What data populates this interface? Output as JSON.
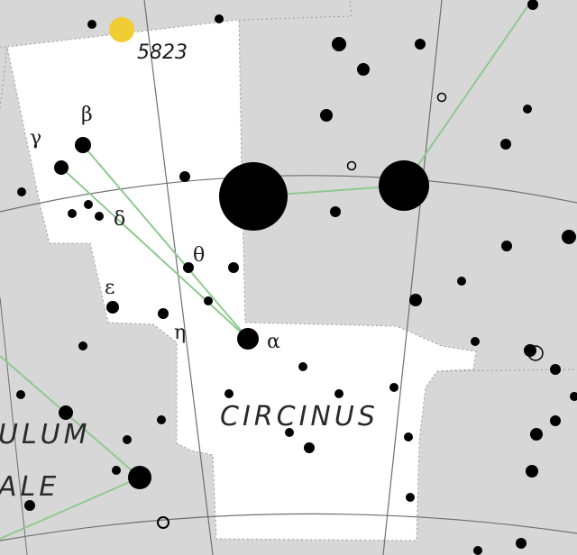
{
  "map": {
    "background_color": "#d7d7d7",
    "constellation_fill": "#ffffff",
    "line_color": "#8fc98f",
    "grid_color": "#888888",
    "constellation_name": "CIRCINUS",
    "neighbor_label_top": "ULUM",
    "neighbor_label_bottom": "ALE",
    "object_label": "5823",
    "greek": {
      "alpha": "α",
      "beta": "β",
      "gamma": "γ",
      "delta": "δ",
      "epsilon": "ε",
      "eta": "η",
      "theta": "θ"
    }
  }
}
